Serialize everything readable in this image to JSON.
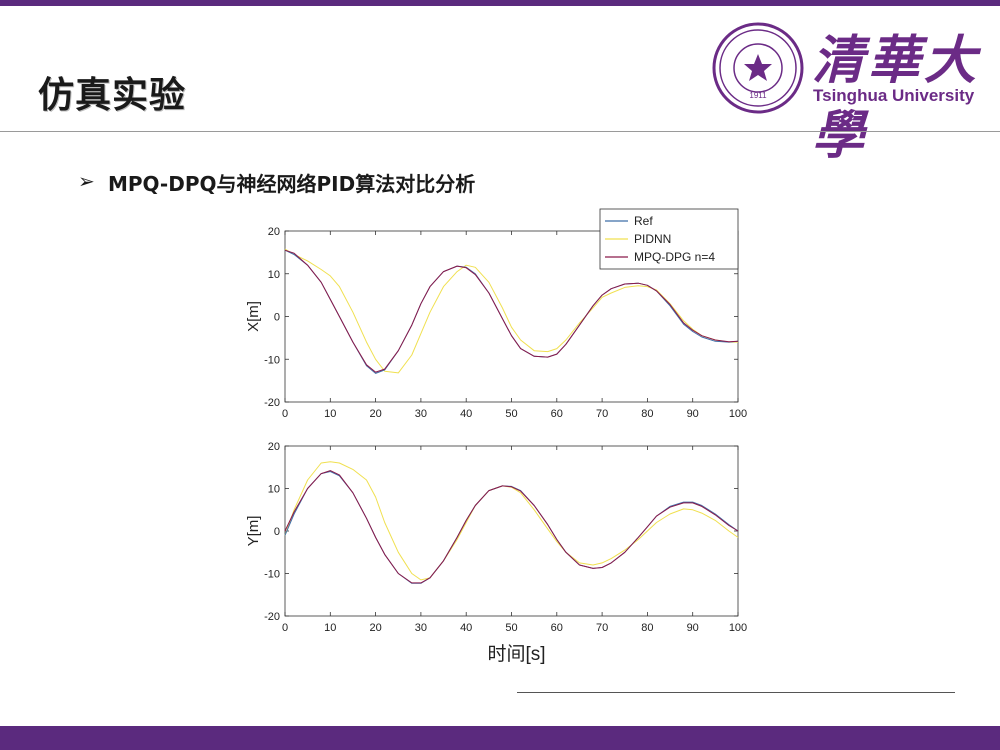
{
  "slide": {
    "title": "仿真实验",
    "bullet_marker": "➢",
    "bullet_text": "MPQ-DPQ与神经网络PID算法对比分析",
    "accent_color": "#5b2a7e"
  },
  "logo": {
    "chinese_name": "清華大學",
    "english_name": "Tsinghua University",
    "seal_year": "1911",
    "brand_color": "#6b2b86"
  },
  "chart_data": [
    {
      "type": "line",
      "ylabel": "X[m]",
      "xlabel": "",
      "xlim": [
        0,
        100
      ],
      "ylim": [
        -20,
        20
      ],
      "xticks": [
        0,
        10,
        20,
        30,
        40,
        50,
        60,
        70,
        80,
        90,
        100
      ],
      "yticks": [
        20,
        10,
        0,
        -10,
        -20
      ],
      "legend": {
        "placement": "top-right",
        "entries": [
          "Ref",
          "PIDNN",
          "MPQ-DPG n=4"
        ]
      },
      "series": [
        {
          "name": "Ref",
          "color": "#3f6ea8",
          "x": [
            0,
            2,
            5,
            8,
            10,
            12,
            15,
            18,
            20,
            22,
            25,
            28,
            30,
            32,
            35,
            38,
            40,
            42,
            45,
            48,
            50,
            52,
            55,
            58,
            60,
            62,
            65,
            68,
            70,
            72,
            75,
            78,
            80,
            82,
            85,
            88,
            90,
            92,
            95,
            98,
            100
          ],
          "y": [
            15.5,
            14.5,
            12,
            8,
            4,
            0,
            -6,
            -11.5,
            -13.3,
            -12.5,
            -8,
            -2,
            3,
            7,
            10.5,
            11.8,
            11.5,
            10,
            5.5,
            -0.5,
            -4.5,
            -7.5,
            -9.3,
            -9.5,
            -8.8,
            -6.5,
            -2,
            2.5,
            5,
            6.5,
            7.6,
            7.8,
            7.3,
            6,
            2.5,
            -1.8,
            -3.5,
            -4.8,
            -5.8,
            -6,
            -5.8
          ]
        },
        {
          "name": "PIDNN",
          "color": "#f0e050",
          "x": [
            0,
            2,
            5,
            8,
            10,
            12,
            15,
            18,
            20,
            22,
            25,
            28,
            30,
            32,
            35,
            38,
            40,
            42,
            45,
            48,
            50,
            52,
            55,
            58,
            60,
            62,
            65,
            68,
            70,
            72,
            75,
            78,
            80,
            82,
            85,
            88,
            90,
            92,
            95,
            98,
            100
          ],
          "y": [
            15.8,
            14.5,
            13,
            11,
            9.5,
            7,
            1,
            -6,
            -10,
            -12.8,
            -13.2,
            -9,
            -4,
            1,
            7,
            10.5,
            12,
            11.5,
            8,
            2,
            -2.5,
            -5.5,
            -8,
            -8.2,
            -7.5,
            -5.5,
            -1.5,
            2,
            4.5,
            5.5,
            6.8,
            7.2,
            7,
            6.2,
            3,
            -1,
            -3,
            -4.5,
            -5.5,
            -6,
            -6
          ]
        },
        {
          "name": "MPQ-DPG n=4",
          "color": "#8b1a4a",
          "x": [
            0,
            2,
            5,
            8,
            10,
            12,
            15,
            18,
            20,
            22,
            25,
            28,
            30,
            32,
            35,
            38,
            40,
            42,
            45,
            48,
            50,
            52,
            55,
            58,
            60,
            62,
            65,
            68,
            70,
            72,
            75,
            78,
            80,
            82,
            85,
            88,
            90,
            92,
            95,
            98,
            100
          ],
          "y": [
            15.5,
            14.8,
            12,
            8,
            4,
            0,
            -6,
            -11.3,
            -13,
            -12.3,
            -8,
            -2,
            3,
            7,
            10.5,
            11.8,
            11.4,
            9.8,
            5.5,
            -0.5,
            -4.5,
            -7.5,
            -9.3,
            -9.5,
            -8.8,
            -6.5,
            -2,
            2.5,
            5,
            6.5,
            7.6,
            7.8,
            7.3,
            6,
            2.8,
            -1.5,
            -3.2,
            -4.5,
            -5.5,
            -5.9,
            -5.8
          ]
        }
      ]
    },
    {
      "type": "line",
      "ylabel": "Y[m]",
      "xlabel": "时间[s]",
      "xlim": [
        0,
        100
      ],
      "ylim": [
        -20,
        20
      ],
      "xticks": [
        0,
        10,
        20,
        30,
        40,
        50,
        60,
        70,
        80,
        90,
        100
      ],
      "yticks": [
        20,
        10,
        0,
        -10,
        -20
      ],
      "series": [
        {
          "name": "Ref",
          "color": "#3f6ea8",
          "x": [
            0,
            2,
            5,
            8,
            10,
            12,
            15,
            18,
            20,
            22,
            25,
            28,
            30,
            32,
            35,
            38,
            40,
            42,
            45,
            48,
            50,
            52,
            55,
            58,
            60,
            62,
            65,
            68,
            70,
            72,
            75,
            78,
            80,
            82,
            85,
            88,
            90,
            92,
            95,
            98,
            100
          ],
          "y": [
            -1,
            4,
            10,
            13.5,
            14,
            13,
            9,
            3,
            -1.5,
            -5.5,
            -10,
            -12.3,
            -12.3,
            -11,
            -7,
            -1.5,
            2.5,
            6,
            9.5,
            10.6,
            10.5,
            9.5,
            6,
            1.5,
            -2,
            -5,
            -8,
            -8.8,
            -8.6,
            -7.5,
            -5,
            -1.5,
            1,
            3.5,
            5.8,
            6.8,
            6.8,
            6,
            4,
            1.5,
            0
          ]
        },
        {
          "name": "PIDNN",
          "color": "#f0e050",
          "x": [
            0,
            2,
            5,
            8,
            10,
            12,
            15,
            18,
            20,
            22,
            25,
            28,
            30,
            32,
            35,
            38,
            40,
            42,
            45,
            48,
            50,
            52,
            55,
            58,
            60,
            62,
            65,
            68,
            70,
            72,
            75,
            78,
            80,
            82,
            85,
            88,
            90,
            92,
            95,
            98,
            100
          ],
          "y": [
            -1,
            5,
            12,
            16,
            16.3,
            16,
            14.5,
            12,
            8,
            2,
            -5,
            -10,
            -11.5,
            -11,
            -7,
            -2,
            2,
            6,
            9.5,
            10.6,
            10.3,
            9,
            5,
            0.5,
            -2.5,
            -5,
            -7.5,
            -8,
            -7.5,
            -6.5,
            -4.5,
            -2,
            0,
            2,
            4,
            5.2,
            5,
            4.2,
            2.5,
            0,
            -1.5
          ]
        },
        {
          "name": "MPQ-DPG n=4",
          "color": "#8b1a4a",
          "x": [
            0,
            2,
            5,
            8,
            10,
            12,
            15,
            18,
            20,
            22,
            25,
            28,
            30,
            32,
            35,
            38,
            40,
            42,
            45,
            48,
            50,
            52,
            55,
            58,
            60,
            62,
            65,
            68,
            70,
            72,
            75,
            78,
            80,
            82,
            85,
            88,
            90,
            92,
            95,
            98,
            100
          ],
          "y": [
            0,
            4.5,
            10,
            13.5,
            14.2,
            13.2,
            9,
            3,
            -1.5,
            -5.5,
            -10,
            -12.2,
            -12.2,
            -11,
            -7,
            -1.5,
            2.5,
            6,
            9.5,
            10.6,
            10.4,
            9.4,
            6,
            1.5,
            -2,
            -5,
            -8,
            -8.8,
            -8.6,
            -7.5,
            -5,
            -1.5,
            1,
            3.5,
            5.6,
            6.6,
            6.6,
            5.8,
            3.8,
            1.3,
            0
          ]
        }
      ]
    }
  ]
}
